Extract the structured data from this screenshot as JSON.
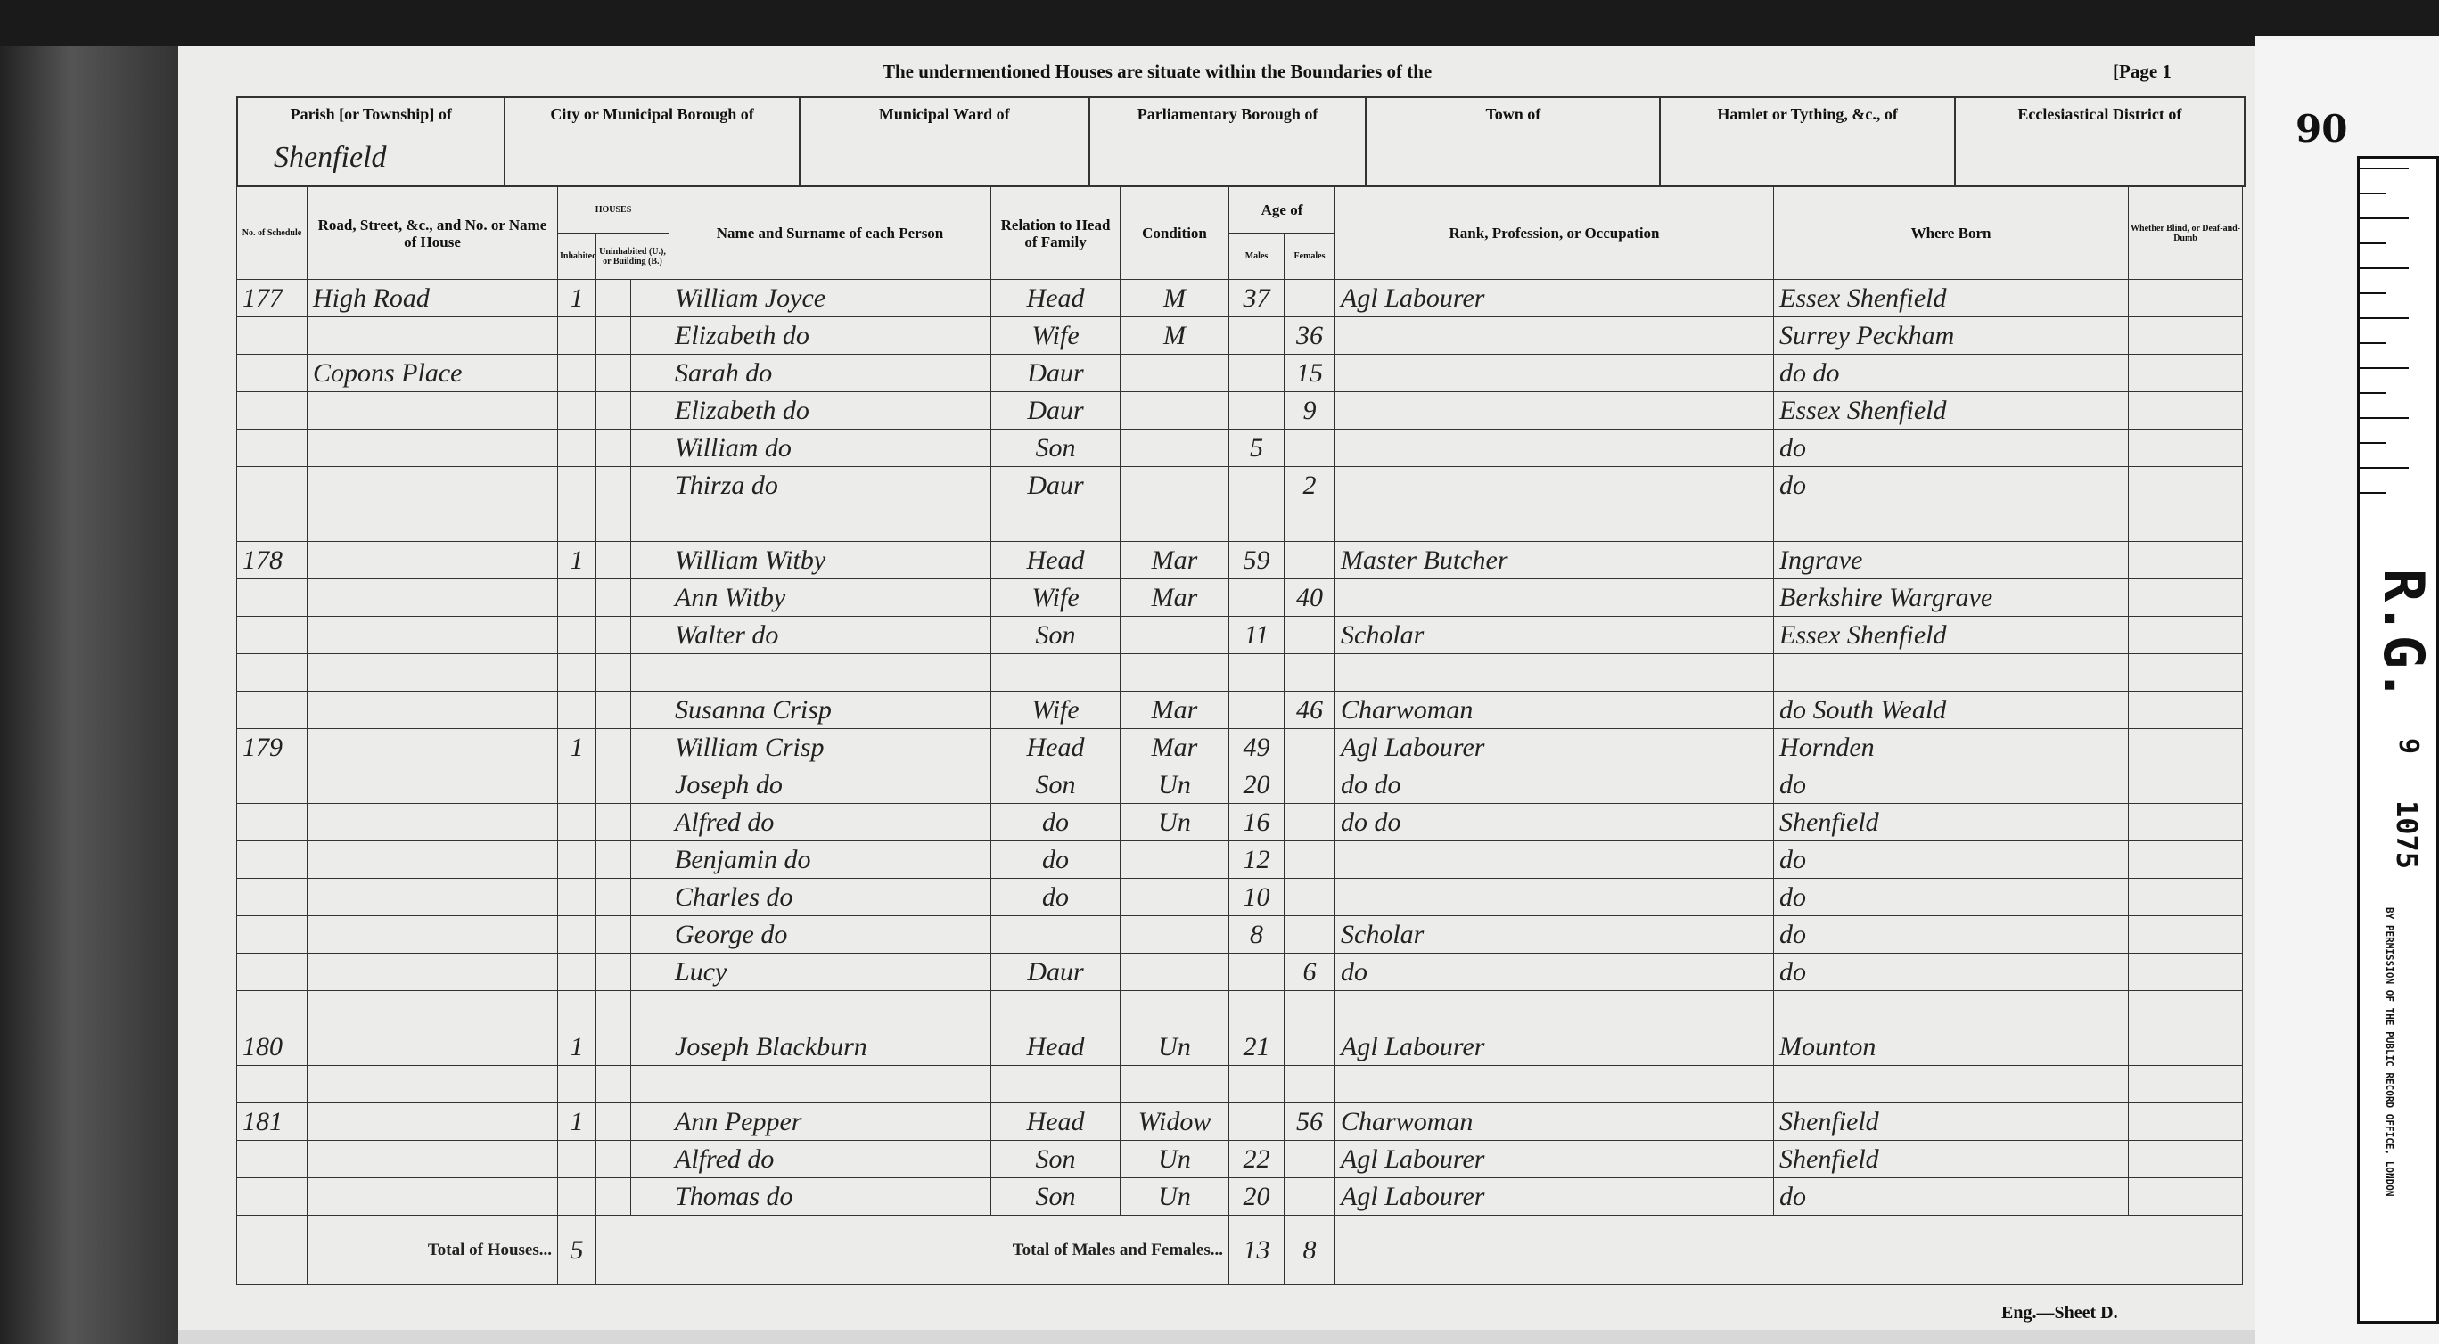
{
  "header": {
    "title": "The undermentioned Houses are situate within the Boundaries of the",
    "page": "[Page 1",
    "fields": [
      {
        "label": "Parish [or Township] of",
        "value": "Shenfield"
      },
      {
        "label": "City or Municipal Borough of"
      },
      {
        "label": "Municipal Ward of"
      },
      {
        "label": "Parliamentary Borough of"
      },
      {
        "label": "Town of"
      },
      {
        "label": "Hamlet or Tything, &c., of"
      },
      {
        "label": "Ecclesiastical District of"
      }
    ]
  },
  "columns": {
    "schedule": "No. of Schedule",
    "road": "Road, Street, &c., and No. or Name of House",
    "houses": "HOUSES",
    "inhabited": "Inhabited",
    "uninhabited": "Uninhabited (U.), or Building (B.)",
    "name": "Name and Surname of each Person",
    "relation": "Relation to Head of Family",
    "condition": "Condition",
    "age": "Age of",
    "males": "Males",
    "females": "Females",
    "occupation": "Rank, Profession, or Occupation",
    "born": "Where Born",
    "blind": "Whether Blind, or Deaf-and-Dumb"
  },
  "rows": [
    {
      "schedule": 177,
      "road": "High Road",
      "inhabited": 1,
      "name": "William Joyce",
      "relation": "Head",
      "condition": "M",
      "males": 37,
      "occupation": "Agl Labourer",
      "born": "Essex Shenfield"
    },
    {
      "name": "Elizabeth do",
      "relation": "Wife",
      "condition": "M",
      "females": 36,
      "born": "Surrey Peckham"
    },
    {
      "road": "Copons Place",
      "name": "Sarah do",
      "relation": "Daur",
      "females": 15,
      "born": "do do"
    },
    {
      "name": "Elizabeth do",
      "relation": "Daur",
      "females": 9,
      "born": "Essex Shenfield"
    },
    {
      "name": "William do",
      "relation": "Son",
      "males": 5,
      "born": "do"
    },
    {
      "name": "Thirza do",
      "relation": "Daur",
      "females": 2,
      "born": "do"
    },
    {
      "schedule": 178,
      "inhabited": 1,
      "name": "William Witby",
      "relation": "Head",
      "condition": "Mar",
      "males": 59,
      "occupation": "Master Butcher",
      "born": "Ingrave"
    },
    {
      "name": "Ann Witby",
      "relation": "Wife",
      "condition": "Mar",
      "females": 40,
      "born": "Berkshire Wargrave"
    },
    {
      "name": "Walter do",
      "relation": "Son",
      "males": 11,
      "occupation": "Scholar",
      "born": "Essex Shenfield"
    },
    {
      "name": "Susanna Crisp",
      "relation": "Wife",
      "condition": "Mar",
      "females": 46,
      "occupation": "Charwoman",
      "born": "do South Weald"
    },
    {
      "schedule": 179,
      "inhabited": 1,
      "name": "William Crisp",
      "relation": "Head",
      "condition": "Mar",
      "males": 49,
      "occupation": "Agl Labourer",
      "born": "Hornden"
    },
    {
      "name": "Joseph do",
      "relation": "Son",
      "condition": "Un",
      "males": 20,
      "occupation": "do do",
      "born": "do"
    },
    {
      "name": "Alfred do",
      "relation": "do",
      "condition": "Un",
      "males": 16,
      "occupation": "do do",
      "born": "Shenfield"
    },
    {
      "name": "Benjamin do",
      "relation": "do",
      "males": 12,
      "born": "do"
    },
    {
      "name": "Charles do",
      "relation": "do",
      "males": 10,
      "born": "do"
    },
    {
      "name": "George do",
      "males": 8,
      "occupation": "Scholar",
      "born": "do"
    },
    {
      "name": "Lucy",
      "relation": "Daur",
      "females": 6,
      "occupation": "do",
      "born": "do"
    },
    {
      "schedule": 180,
      "inhabited": 1,
      "name": "Joseph Blackburn",
      "relation": "Head",
      "condition": "Un",
      "males": 21,
      "occupation": "Agl Labourer",
      "born": "Mounton"
    },
    {
      "schedule": 181,
      "inhabited": 1,
      "name": "Ann Pepper",
      "relation": "Head",
      "condition": "Widow",
      "females": 56,
      "occupation": "Charwoman",
      "born": "Shenfield"
    },
    {
      "name": "Alfred do",
      "relation": "Son",
      "condition": "Un",
      "males": 22,
      "occupation": "Agl Labourer",
      "born": "Shenfield"
    },
    {
      "name": "Thomas do",
      "relation": "Son",
      "condition": "Un",
      "males": 20,
      "occupation": "Agl Labourer",
      "born": "do"
    }
  ],
  "totals": {
    "houses_label": "Total of Houses...",
    "houses": 5,
    "persons_label": "Total of Males and Females...",
    "males": 13,
    "females": 8
  },
  "footer": "Eng.—Sheet D.",
  "margin": {
    "folio": 90,
    "reference": "R.G.",
    "piece_class": 9,
    "piece": 1075,
    "permission": "BY PERMISSION OF THE PUBLIC RECORD OFFICE, LONDON"
  }
}
